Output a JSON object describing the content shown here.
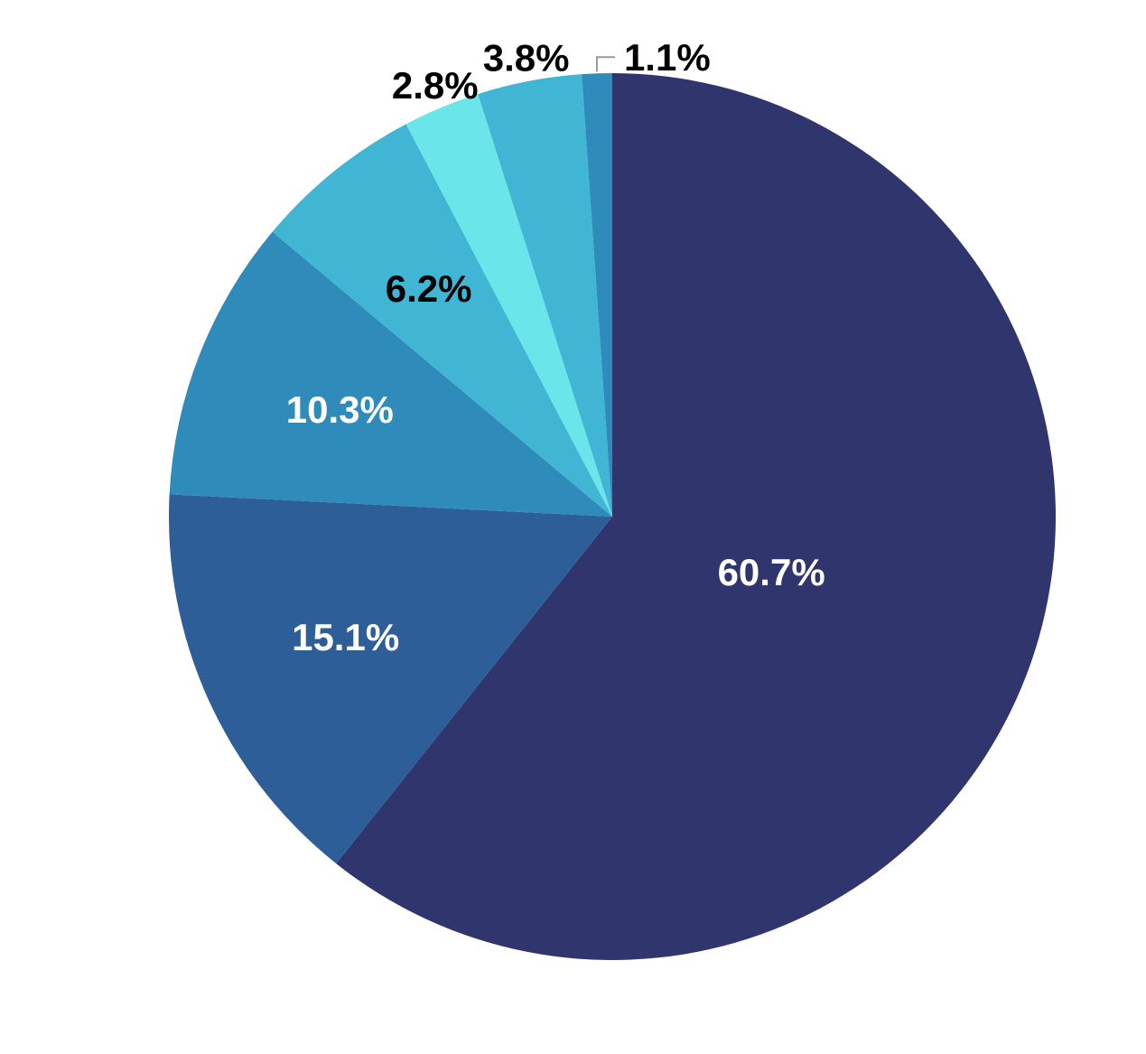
{
  "chart_data": {
    "type": "pie",
    "title": "",
    "start": "top",
    "direction": "clockwise",
    "slices": [
      {
        "value": 60.7,
        "label": "60.7%",
        "color": "#31356e",
        "label_color": "#ffffff",
        "label_placement": "inside"
      },
      {
        "value": 15.1,
        "label": "15.1%",
        "color": "#2e5e97",
        "label_color": "#ffffff",
        "label_placement": "inside"
      },
      {
        "value": 10.3,
        "label": "10.3%",
        "color": "#2e8bba",
        "label_color": "#ffffff",
        "label_placement": "inside"
      },
      {
        "value": 6.2,
        "label": "6.2%",
        "color": "#41b6d4",
        "label_color": "#000000",
        "label_placement": "inside"
      },
      {
        "value": 2.8,
        "label": "2.8%",
        "color": "#6ae6ea",
        "label_color": "#000000",
        "label_placement": "outside"
      },
      {
        "value": 3.8,
        "label": "3.8%",
        "color": "#41b6d4",
        "label_color": "#000000",
        "label_placement": "outside"
      },
      {
        "value": 1.1,
        "label": "1.1%",
        "color": "#2e8bba",
        "label_color": "#000000",
        "label_placement": "outside-leader"
      }
    ]
  }
}
